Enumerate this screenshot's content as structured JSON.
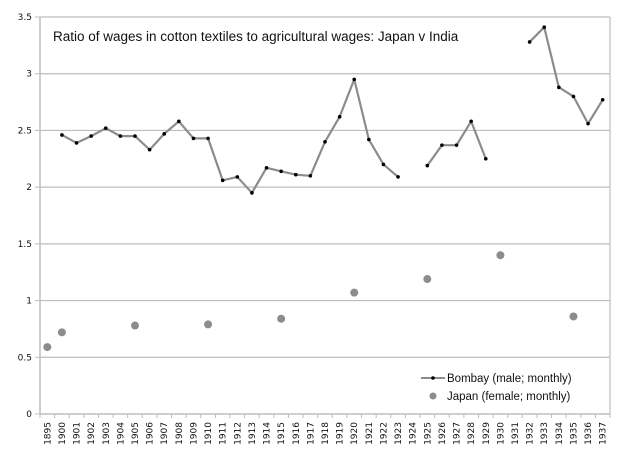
{
  "chart_data": {
    "type": "line",
    "title": "Ratio of wages in cotton textiles to agricultural wages: Japan v India",
    "xlabel": "",
    "ylabel": "",
    "ylim": [
      0,
      3.5
    ],
    "yticks": [
      "0",
      "0.5",
      "1",
      "1.5",
      "2",
      "2.5",
      "3",
      "3.5"
    ],
    "ytick_values": [
      0,
      0.5,
      1,
      1.5,
      2,
      2.5,
      3,
      3.5
    ],
    "grid": true,
    "legend_position": "bottom-right",
    "categories": [
      "1895",
      "1900",
      "1901",
      "1902",
      "1903",
      "1904",
      "1905",
      "1906",
      "1907",
      "1908",
      "1909",
      "1910",
      "1911",
      "1912",
      "1913",
      "1914",
      "1915",
      "1916",
      "1917",
      "1918",
      "1919",
      "1920",
      "1921",
      "1922",
      "1923",
      "1924",
      "1925",
      "1926",
      "1927",
      "1928",
      "1929",
      "1930",
      "1931",
      "1932",
      "1933",
      "1934",
      "1935",
      "1936",
      "1937"
    ],
    "series": [
      {
        "name": "Bombay (male; monthly)",
        "style": "line-with-markers",
        "line_color": "#8c8c8c",
        "marker_color": "#000000",
        "values": [
          null,
          2.46,
          2.39,
          2.45,
          2.52,
          2.45,
          2.45,
          2.33,
          2.47,
          2.58,
          2.43,
          2.43,
          2.06,
          2.09,
          1.95,
          2.17,
          2.14,
          2.11,
          2.1,
          2.4,
          2.62,
          2.95,
          2.42,
          2.2,
          2.09,
          null,
          2.19,
          2.37,
          2.37,
          2.58,
          2.25,
          null,
          null,
          3.28,
          3.41,
          2.88,
          2.8,
          2.56,
          2.77
        ]
      },
      {
        "name": "Japan (female; monthly)",
        "style": "markers-only",
        "marker_color": "#8c8c8c",
        "values": [
          0.59,
          0.72,
          null,
          null,
          null,
          null,
          0.78,
          null,
          null,
          null,
          null,
          0.79,
          null,
          null,
          null,
          null,
          0.84,
          null,
          null,
          null,
          null,
          1.07,
          null,
          null,
          null,
          null,
          1.19,
          null,
          null,
          null,
          null,
          1.4,
          null,
          null,
          null,
          null,
          0.86,
          null,
          null
        ]
      }
    ]
  },
  "colors": {
    "gridline": "#bdbdbd",
    "axis": "#bdbdbd",
    "text": "#111111"
  }
}
